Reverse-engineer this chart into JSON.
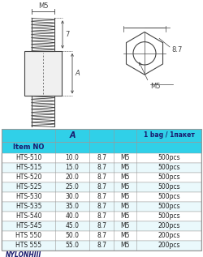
{
  "rows": [
    [
      "HTS-510",
      "10.0",
      "8.7",
      "M5",
      "500pcs"
    ],
    [
      "HTS-515",
      "15.0",
      "8.7",
      "M5",
      "500pcs"
    ],
    [
      "HTS-520",
      "20.0",
      "8.7",
      "M5",
      "500pcs"
    ],
    [
      "HTS-525",
      "25.0",
      "8.7",
      "M5",
      "500pcs"
    ],
    [
      "HTS-530",
      "30.0",
      "8.7",
      "M5",
      "500pcs"
    ],
    [
      "HTS-535",
      "35.0",
      "8.7",
      "M5",
      "500pcs"
    ],
    [
      "HTS-540",
      "40.0",
      "8.7",
      "M5",
      "500pcs"
    ],
    [
      "HTS-545",
      "45.0",
      "8.7",
      "M5",
      "200pcs"
    ],
    [
      "HTS 550",
      "50.0",
      "8.7",
      "M5",
      "200pcs"
    ],
    [
      "HTS 555",
      "55.0",
      "8.7",
      "M5",
      "200pcs"
    ]
  ],
  "header_bg": "#30d0e8",
  "border_color": "#999999",
  "text_color": "#222222",
  "dark_text": "#1a1a6e",
  "footer_text": "NYLONHIII",
  "bg_color": "#ffffff",
  "lc": "#444444",
  "dim_M5_top": "M5",
  "dim_7": "7",
  "dim_A": "A",
  "dim_8_7": "8.7",
  "dim_M5_side": "M5"
}
